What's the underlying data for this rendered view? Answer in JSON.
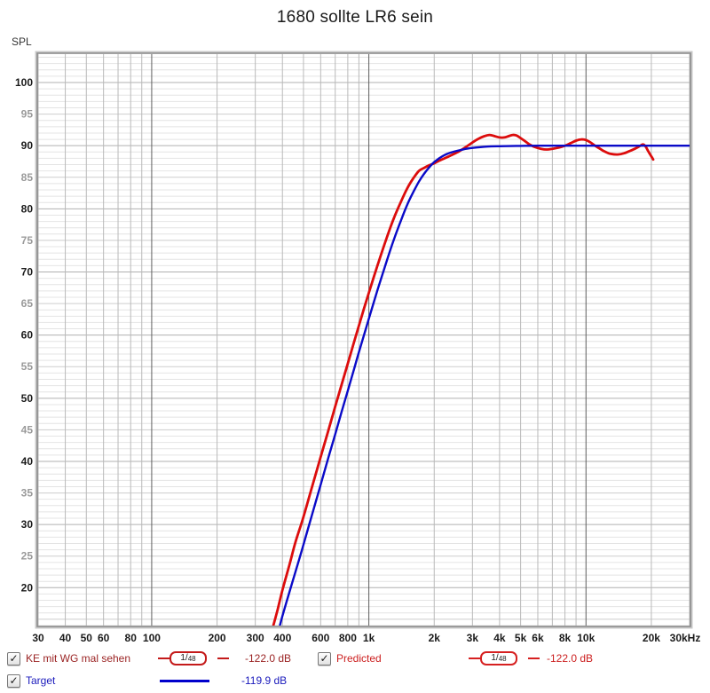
{
  "title": "1680 sollte LR6 sein",
  "y_axis_label": "SPL",
  "icons": {
    "check_glyph": "✓"
  },
  "legend": {
    "rows": [
      {
        "entries": [
          {
            "label": "KE mit WG mal sehen",
            "checked": true,
            "smoothing": "1/48",
            "smoothing_num": "1/",
            "smoothing_den": "48",
            "value": "-122.0 dB",
            "color": "#9b2424",
            "icon_color": "#c41a1a"
          },
          {
            "label": "Predicted",
            "checked": true,
            "smoothing": "1/48",
            "smoothing_num": "1/",
            "smoothing_den": "48",
            "value": "-122.0 dB",
            "color": "#cc2020",
            "icon_color": "#d62020"
          }
        ]
      },
      {
        "entries": [
          {
            "label": "Target",
            "checked": true,
            "smoothing": null,
            "value": "-119.9 dB",
            "color": "#1a1abc",
            "icon_color": "#0000cc"
          }
        ]
      }
    ]
  },
  "chart_data": {
    "type": "line",
    "title": "1680 sollte LR6 sein",
    "ylabel": "SPL",
    "grid": "on",
    "x_axis": {
      "scale": "log",
      "min": 30,
      "max": 30000,
      "unit": "Hz",
      "tick_values": [
        30,
        40,
        50,
        60,
        80,
        100,
        200,
        300,
        400,
        600,
        800,
        1000,
        2000,
        3000,
        4000,
        5000,
        6000,
        8000,
        10000,
        20000,
        30000
      ],
      "tick_labels": [
        "30",
        "40",
        "50",
        "60",
        "80",
        "100",
        "200",
        "300",
        "400",
        "600",
        "800",
        "1k",
        "2k",
        "3k",
        "4k",
        "5k",
        "6k",
        "8k",
        "10k",
        "20k",
        "30kHz"
      ],
      "dark_lines": [
        100,
        1000,
        10000
      ]
    },
    "y_axis": {
      "min": 14.0,
      "max": 104.5,
      "unit": "dB SPL",
      "tick_values": [
        20,
        25,
        30,
        35,
        40,
        45,
        50,
        55,
        60,
        65,
        70,
        75,
        80,
        85,
        90,
        95,
        100
      ],
      "minor_step": 1,
      "mid_step": 5,
      "major_step": 10
    },
    "series": [
      {
        "name": "KE mit WG mal sehen",
        "note": "Predicted curve overlaps this red trace",
        "color": "#dc0c0c",
        "width": 2.8,
        "points": [
          [
            358,
            13.2
          ],
          [
            380,
            16.5
          ],
          [
            400,
            19.6
          ],
          [
            430,
            23.5
          ],
          [
            460,
            27.3
          ],
          [
            500,
            31.2
          ],
          [
            550,
            36.2
          ],
          [
            600,
            40.7
          ],
          [
            650,
            44.8
          ],
          [
            700,
            48.7
          ],
          [
            750,
            52.2
          ],
          [
            800,
            55.5
          ],
          [
            850,
            58.6
          ],
          [
            900,
            61.5
          ],
          [
            950,
            64.2
          ],
          [
            1000,
            66.7
          ],
          [
            1100,
            71.2
          ],
          [
            1200,
            75.1
          ],
          [
            1300,
            78.4
          ],
          [
            1400,
            81.0
          ],
          [
            1500,
            83.2
          ],
          [
            1600,
            84.8
          ],
          [
            1700,
            86.0
          ],
          [
            1800,
            86.5
          ],
          [
            1900,
            86.9
          ],
          [
            2000,
            87.2
          ],
          [
            2100,
            87.6
          ],
          [
            2200,
            87.9
          ],
          [
            2400,
            88.5
          ],
          [
            2600,
            89.1
          ],
          [
            2800,
            89.8
          ],
          [
            3000,
            90.5
          ],
          [
            3200,
            91.1
          ],
          [
            3400,
            91.5
          ],
          [
            3600,
            91.7
          ],
          [
            3800,
            91.5
          ],
          [
            4000,
            91.3
          ],
          [
            4200,
            91.3
          ],
          [
            4400,
            91.5
          ],
          [
            4600,
            91.7
          ],
          [
            4800,
            91.6
          ],
          [
            5000,
            91.2
          ],
          [
            5200,
            90.8
          ],
          [
            5500,
            90.2
          ],
          [
            5800,
            89.8
          ],
          [
            6200,
            89.5
          ],
          [
            6600,
            89.4
          ],
          [
            7000,
            89.5
          ],
          [
            7500,
            89.7
          ],
          [
            8000,
            90.0
          ],
          [
            8500,
            90.4
          ],
          [
            9000,
            90.8
          ],
          [
            9500,
            91.0
          ],
          [
            10000,
            90.9
          ],
          [
            10500,
            90.5
          ],
          [
            11000,
            90.0
          ],
          [
            11500,
            89.6
          ],
          [
            12000,
            89.2
          ],
          [
            12500,
            88.9
          ],
          [
            13000,
            88.7
          ],
          [
            14000,
            88.6
          ],
          [
            15000,
            88.8
          ],
          [
            16000,
            89.2
          ],
          [
            17000,
            89.6
          ],
          [
            17800,
            90.0
          ],
          [
            18300,
            90.2
          ],
          [
            18800,
            89.9
          ],
          [
            19300,
            89.2
          ],
          [
            20000,
            88.3
          ],
          [
            20400,
            87.8
          ]
        ]
      },
      {
        "name": "Target",
        "color": "#0a0ac8",
        "width": 2.4,
        "points": [
          [
            384,
            13.2
          ],
          [
            400,
            15.5
          ],
          [
            430,
            19.2
          ],
          [
            460,
            22.6
          ],
          [
            500,
            26.8
          ],
          [
            550,
            31.8
          ],
          [
            600,
            36.3
          ],
          [
            650,
            40.5
          ],
          [
            700,
            44.3
          ],
          [
            750,
            47.9
          ],
          [
            800,
            51.2
          ],
          [
            850,
            54.3
          ],
          [
            900,
            57.3
          ],
          [
            950,
            60.0
          ],
          [
            1000,
            62.6
          ],
          [
            1100,
            67.3
          ],
          [
            1200,
            71.4
          ],
          [
            1300,
            75.0
          ],
          [
            1400,
            78.0
          ],
          [
            1500,
            80.6
          ],
          [
            1600,
            82.6
          ],
          [
            1700,
            84.3
          ],
          [
            1800,
            85.6
          ],
          [
            1900,
            86.6
          ],
          [
            2000,
            87.4
          ],
          [
            2200,
            88.4
          ],
          [
            2400,
            88.95
          ],
          [
            2600,
            89.25
          ],
          [
            2800,
            89.5
          ],
          [
            3000,
            89.65
          ],
          [
            3500,
            89.85
          ],
          [
            4000,
            89.92
          ],
          [
            5000,
            89.97
          ],
          [
            6000,
            90
          ],
          [
            8000,
            90
          ],
          [
            10000,
            90
          ],
          [
            15000,
            90
          ],
          [
            20000,
            90
          ],
          [
            30000,
            90
          ]
        ]
      }
    ]
  }
}
